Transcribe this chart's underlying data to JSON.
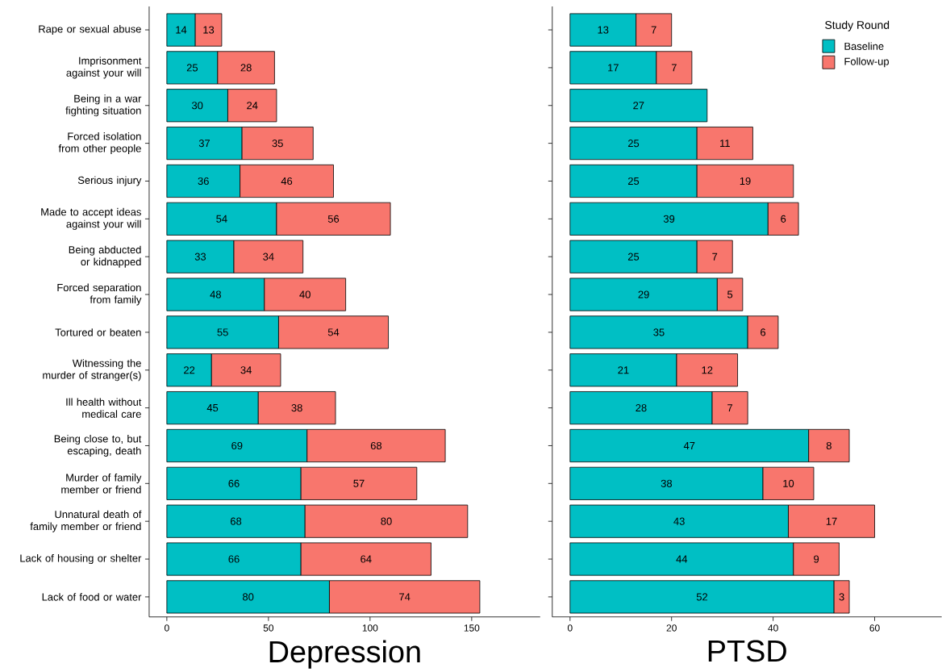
{
  "chart_data": [
    {
      "type": "bar",
      "orientation": "horizontal",
      "stacked": true,
      "xlabel": "Depression",
      "categories": [
        "Rape or sexual abuse",
        "Imprisonment against your will",
        "Being in a war fighting situation",
        "Forced isolation from other people",
        "Serious injury",
        "Made to accept ideas against your will",
        "Being abducted or kidnapped",
        "Forced separation from family",
        "Tortured or beaten",
        "Witnessing the murder of stranger(s)",
        "Ill health without medical care",
        "Being close to, but escaping, death",
        "Murder of family member or friend",
        "Unnatural death of family member or friend",
        "Lack of housing or shelter",
        "Lack of food or water"
      ],
      "series": [
        {
          "color": "#00bfc4",
          "values": [
            14,
            25,
            30,
            37,
            36,
            54,
            33,
            48,
            55,
            22,
            45,
            69,
            66,
            68,
            66,
            80
          ]
        },
        {
          "color": "#f8766d",
          "values": [
            13,
            28,
            24,
            35,
            46,
            56,
            34,
            40,
            54,
            34,
            38,
            68,
            57,
            80,
            64,
            74
          ]
        }
      ],
      "xlim": [
        -8.7,
        183.7
      ],
      "xticks": [
        0,
        50,
        100,
        150
      ],
      "data_labels": true
    },
    {
      "type": "bar",
      "orientation": "horizontal",
      "stacked": true,
      "xlabel": "PTSD",
      "legend_title": "Study Round",
      "legend": "top right",
      "tick_labels": "x",
      "categories": [
        null,
        null,
        null,
        null,
        null,
        null,
        null,
        null,
        null,
        null,
        null,
        null,
        null,
        null,
        null,
        null
      ],
      "series": [
        {
          "name": "Baseline",
          "color": "#00bfc4",
          "values": [
            13,
            17,
            27,
            25,
            25,
            39,
            25,
            29,
            35,
            21,
            28,
            47,
            38,
            43,
            44,
            52
          ]
        },
        {
          "name": "Follow-up",
          "color": "#f8766d",
          "values": [
            7,
            7,
            null,
            11,
            19,
            6,
            7,
            5,
            6,
            12,
            7,
            8,
            10,
            17,
            9,
            3
          ]
        }
      ],
      "xlim": [
        -3.5,
        73.2
      ],
      "xticks": [
        0,
        20,
        40,
        60
      ],
      "data_labels": true
    }
  ]
}
